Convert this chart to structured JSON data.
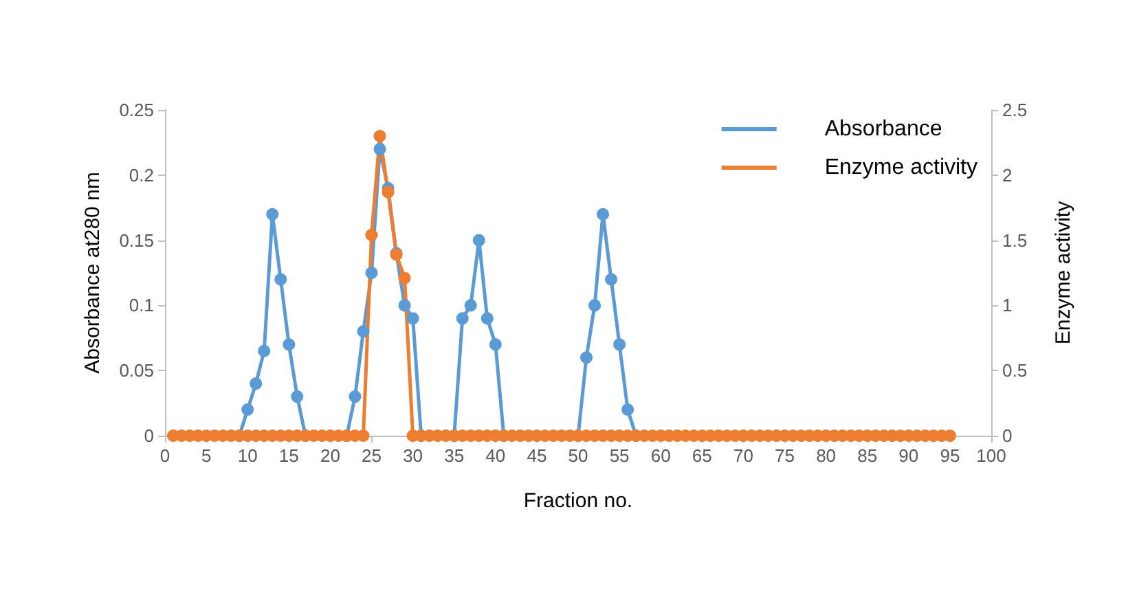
{
  "chart_data": {
    "type": "line",
    "xlabel": "Fraction no.",
    "ylabel": "Absorbance at280 nm",
    "y2label": "Enzyme activity",
    "x": [
      1,
      2,
      3,
      4,
      5,
      6,
      7,
      8,
      9,
      10,
      11,
      12,
      13,
      14,
      15,
      16,
      17,
      18,
      19,
      20,
      21,
      22,
      23,
      24,
      25,
      26,
      27,
      28,
      29,
      30,
      31,
      32,
      33,
      34,
      35,
      36,
      37,
      38,
      39,
      40,
      41,
      42,
      43,
      44,
      45,
      46,
      47,
      48,
      49,
      50,
      51,
      52,
      53,
      54,
      55,
      56,
      57,
      58,
      59,
      60,
      61,
      62,
      63,
      64,
      65,
      66,
      67,
      68,
      69,
      70,
      71,
      72,
      73,
      74,
      75,
      76,
      77,
      78,
      79,
      80,
      81,
      82,
      83,
      84,
      85,
      86,
      87,
      88,
      89,
      90,
      91,
      92,
      93,
      94,
      95
    ],
    "series": [
      {
        "name": "Absorbance",
        "color": "#5b9bd5",
        "values": [
          null,
          null,
          null,
          null,
          null,
          null,
          null,
          null,
          0,
          0.02,
          0.04,
          0.065,
          0.17,
          0.12,
          0.07,
          0.03,
          0,
          null,
          null,
          null,
          null,
          0,
          0.03,
          0.08,
          0.125,
          0.22,
          0.19,
          0.14,
          0.1,
          0.09,
          0,
          null,
          null,
          null,
          0,
          0.09,
          0.1,
          0.15,
          0.09,
          0.07,
          0,
          null,
          null,
          null,
          null,
          null,
          null,
          null,
          null,
          0,
          0.06,
          0.1,
          0.17,
          0.12,
          0.07,
          0.02,
          0,
          null,
          null,
          null,
          null,
          null,
          null,
          null,
          null,
          null,
          null,
          null,
          null,
          null,
          null,
          null,
          null,
          null,
          null,
          null,
          null,
          null,
          null,
          null,
          null,
          null,
          null,
          null,
          null,
          null,
          null,
          null,
          null,
          null,
          null,
          null,
          null,
          null,
          null
        ]
      },
      {
        "name": "Enzyme activity",
        "color": "#ed7d31",
        "axis": "y2",
        "values": [
          0,
          0,
          0,
          0,
          0,
          0,
          0,
          0,
          0,
          0,
          0,
          0,
          0,
          0,
          0,
          0,
          0,
          0,
          0,
          0,
          0,
          0,
          0,
          0,
          1.54,
          2.3,
          1.87,
          1.39,
          1.21,
          0,
          0,
          0,
          0,
          0,
          0,
          0,
          0,
          0,
          0,
          0,
          0,
          0,
          0,
          0,
          0,
          0,
          0,
          0,
          0,
          0,
          0,
          0,
          0,
          0,
          0,
          0,
          0,
          0,
          0,
          0,
          0,
          0,
          0,
          0,
          0,
          0,
          0,
          0,
          0,
          0,
          0,
          0,
          0,
          0,
          0,
          0,
          0,
          0,
          0,
          0,
          0,
          0,
          0,
          0,
          0,
          0,
          0,
          0,
          0,
          0,
          0,
          0,
          0,
          0,
          0
        ]
      }
    ],
    "xlim": [
      0,
      100
    ],
    "xticks": [
      0,
      5,
      10,
      15,
      20,
      25,
      30,
      35,
      40,
      45,
      50,
      55,
      60,
      65,
      70,
      75,
      80,
      85,
      90,
      95,
      100
    ],
    "ylim": [
      0,
      0.25
    ],
    "yticks": [
      0,
      0.05,
      0.1,
      0.15,
      0.2,
      0.25
    ],
    "y2lim": [
      0,
      2.5
    ],
    "y2ticks": [
      0,
      0.5,
      1,
      1.5,
      2,
      2.5
    ],
    "grid": false,
    "legend": "top right",
    "marker": "circle",
    "line_style": "solid"
  }
}
